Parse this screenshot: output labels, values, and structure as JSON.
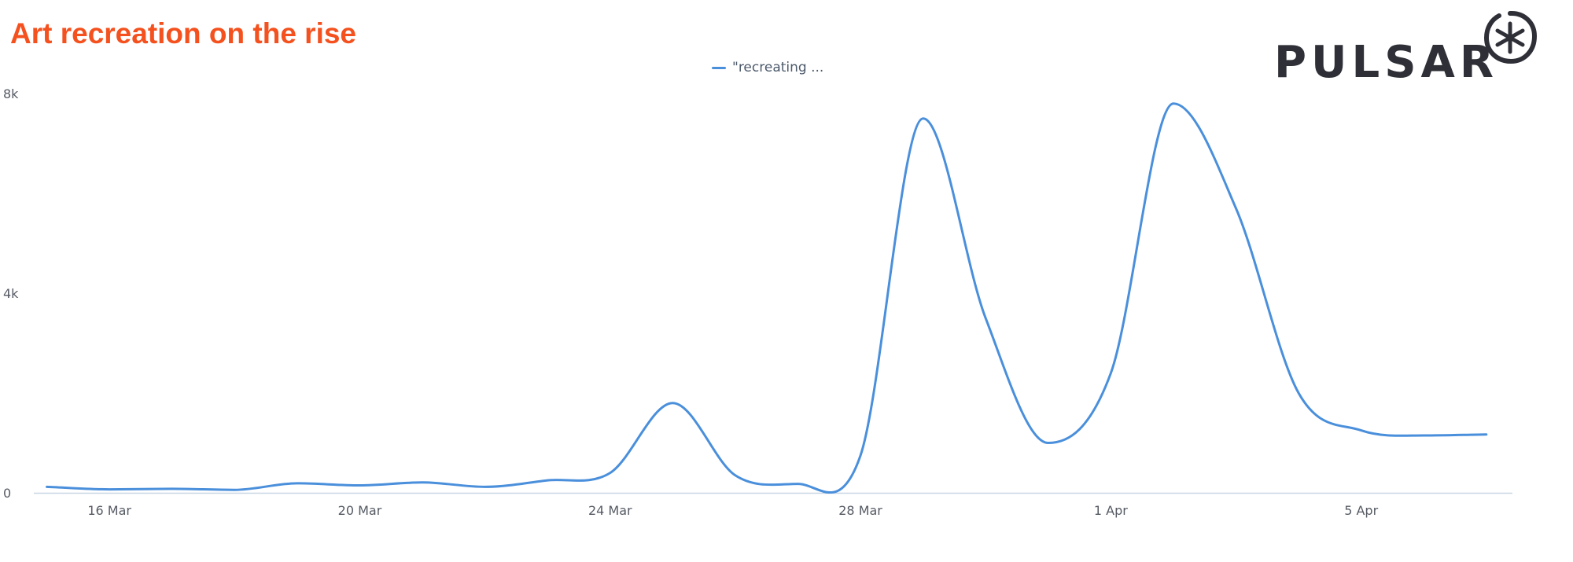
{
  "header": {
    "title": "Art recreation on the rise",
    "logo_text": "PULSAR",
    "logo_icon": "asterisk-circle-icon"
  },
  "colors": {
    "title": "#f4511e",
    "series": "#4a8fdb",
    "logo": "#2f3037",
    "axis": "#c7d6e6"
  },
  "chart_data": {
    "type": "line",
    "title": "Art recreation on the rise",
    "xlabel": "",
    "ylabel": "",
    "legend_position": "top-center",
    "grid": false,
    "x_ticks": [
      "16 Mar",
      "20 Mar",
      "24 Mar",
      "28 Mar",
      "1 Apr",
      "5 Apr"
    ],
    "y_ticks": [
      "0",
      "4k",
      "8k"
    ],
    "ylim": [
      0,
      8000
    ],
    "xlim": [
      "2024-03-14T19:00",
      "2024-04-07T10:00"
    ],
    "series": [
      {
        "name": "\"recreating ...",
        "color": "#4a8fdb",
        "x": [
          "2024-03-15",
          "2024-03-16",
          "2024-03-17",
          "2024-03-18",
          "2024-03-19",
          "2024-03-20",
          "2024-03-21",
          "2024-03-22",
          "2024-03-23",
          "2024-03-24",
          "2024-03-25",
          "2024-03-26",
          "2024-03-27",
          "2024-03-28",
          "2024-03-29",
          "2024-03-30",
          "2024-03-31",
          "2024-04-01",
          "2024-04-02",
          "2024-04-03",
          "2024-04-04",
          "2024-04-05",
          "2024-04-06",
          "2024-04-07"
        ],
        "values": [
          120,
          70,
          80,
          60,
          190,
          150,
          210,
          120,
          250,
          400,
          1800,
          350,
          180,
          750,
          7500,
          3500,
          1000,
          2400,
          7800,
          5700,
          2000,
          1250,
          1150,
          1170
        ]
      }
    ]
  }
}
